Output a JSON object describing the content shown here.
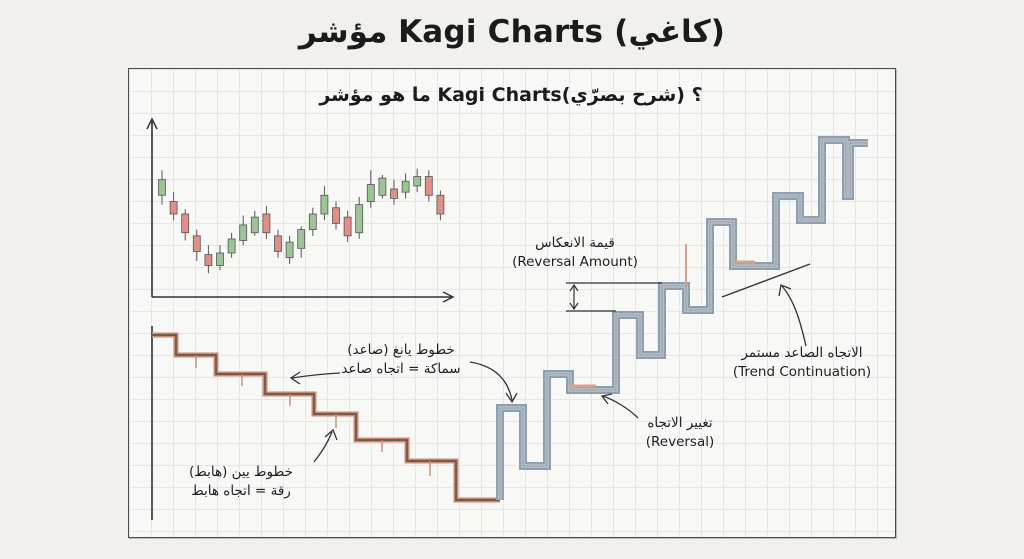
{
  "title": "مؤشر Kagi Charts (كاغي)",
  "subtitle": "ما هو مؤشر Kagi Charts؟ (شرح بصرّي)",
  "labels": {
    "reversal_amount": {
      "ar": "قيمة الانعكاس",
      "en": "(Reversal Amount)"
    },
    "trend_continuation": {
      "ar": "الاتجاه الصاعد مستمر",
      "en": "(Trend Continuation)"
    },
    "reversal": {
      "ar": "تغيير الاتجاه",
      "en": "(Reversal)"
    },
    "yang_lines": {
      "line1": "خطوط يانغ (صاعد)",
      "line2": "سماكة = اتجاه صاعد"
    },
    "yin_lines": {
      "line1": "خطوط يين (هابط)",
      "line2": "رقة = اتجاه هابط"
    }
  },
  "colors": {
    "bull_candle": "#9cc497",
    "bear_candle": "#df8f86",
    "yang_line": "#9aa9b6",
    "yin_line": "#d9a08a",
    "ink": "#333333"
  },
  "candles": [
    {
      "o": 0.62,
      "c": 0.72,
      "h": 0.78,
      "l": 0.56
    },
    {
      "o": 0.58,
      "c": 0.5,
      "h": 0.64,
      "l": 0.46
    },
    {
      "o": 0.5,
      "c": 0.38,
      "h": 0.53,
      "l": 0.33
    },
    {
      "o": 0.36,
      "c": 0.26,
      "h": 0.4,
      "l": 0.2
    },
    {
      "o": 0.24,
      "c": 0.17,
      "h": 0.3,
      "l": 0.12
    },
    {
      "o": 0.17,
      "c": 0.25,
      "h": 0.3,
      "l": 0.14
    },
    {
      "o": 0.25,
      "c": 0.34,
      "h": 0.38,
      "l": 0.22
    },
    {
      "o": 0.33,
      "c": 0.43,
      "h": 0.49,
      "l": 0.3
    },
    {
      "o": 0.38,
      "c": 0.48,
      "h": 0.52,
      "l": 0.36
    },
    {
      "o": 0.5,
      "c": 0.38,
      "h": 0.55,
      "l": 0.34
    },
    {
      "o": 0.36,
      "c": 0.26,
      "h": 0.4,
      "l": 0.22
    },
    {
      "o": 0.22,
      "c": 0.32,
      "h": 0.36,
      "l": 0.18
    },
    {
      "o": 0.28,
      "c": 0.4,
      "h": 0.42,
      "l": 0.22
    },
    {
      "o": 0.4,
      "c": 0.5,
      "h": 0.54,
      "l": 0.36
    },
    {
      "o": 0.5,
      "c": 0.62,
      "h": 0.68,
      "l": 0.46
    },
    {
      "o": 0.54,
      "c": 0.44,
      "h": 0.58,
      "l": 0.4
    },
    {
      "o": 0.48,
      "c": 0.36,
      "h": 0.52,
      "l": 0.32
    },
    {
      "o": 0.38,
      "c": 0.56,
      "h": 0.61,
      "l": 0.34
    },
    {
      "o": 0.58,
      "c": 0.69,
      "h": 0.78,
      "l": 0.54
    },
    {
      "o": 0.62,
      "c": 0.73,
      "h": 0.75,
      "l": 0.6
    },
    {
      "o": 0.66,
      "c": 0.6,
      "h": 0.72,
      "l": 0.56
    },
    {
      "o": 0.64,
      "c": 0.71,
      "h": 0.76,
      "l": 0.6
    },
    {
      "o": 0.68,
      "c": 0.74,
      "h": 0.79,
      "l": 0.64
    },
    {
      "o": 0.74,
      "c": 0.62,
      "h": 0.78,
      "l": 0.58
    },
    {
      "o": 0.62,
      "c": 0.5,
      "h": 0.65,
      "l": 0.46
    }
  ]
}
